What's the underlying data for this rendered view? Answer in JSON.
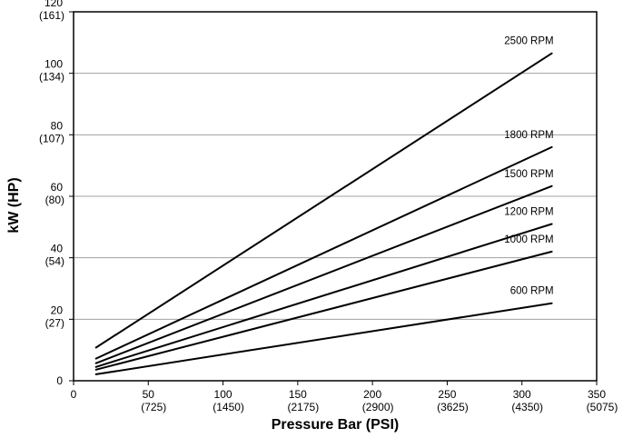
{
  "chart_data": {
    "type": "line",
    "title": "",
    "xlabel": "Pressure Bar (PSI)",
    "ylabel": "kW (HP)",
    "xlim": [
      0,
      350
    ],
    "ylim": [
      0,
      120
    ],
    "x_ticks": [
      {
        "value": 0,
        "label": "0",
        "sublabel": ""
      },
      {
        "value": 50,
        "label": "50",
        "sublabel": "(725)"
      },
      {
        "value": 100,
        "label": "100",
        "sublabel": "(1450)"
      },
      {
        "value": 150,
        "label": "150",
        "sublabel": "(2175)"
      },
      {
        "value": 200,
        "label": "200",
        "sublabel": "(2900)"
      },
      {
        "value": 250,
        "label": "250",
        "sublabel": "(3625)"
      },
      {
        "value": 300,
        "label": "300",
        "sublabel": "(4350)"
      },
      {
        "value": 350,
        "label": "350",
        "sublabel": "(5075)"
      }
    ],
    "y_ticks": [
      {
        "value": 0,
        "label": "0",
        "sublabel": ""
      },
      {
        "value": 20,
        "label": "20",
        "sublabel": "(27)"
      },
      {
        "value": 40,
        "label": "40",
        "sublabel": "(54)"
      },
      {
        "value": 60,
        "label": "60",
        "sublabel": "(80)"
      },
      {
        "value": 80,
        "label": "80",
        "sublabel": "(107)"
      },
      {
        "value": 100,
        "label": "100",
        "sublabel": "(134)"
      },
      {
        "value": 120,
        "label": "120",
        "sublabel": "(161)"
      }
    ],
    "grid": true,
    "legend": "inline labels at line ends",
    "series": [
      {
        "name": "2500 RPM",
        "x": [
          15,
          320
        ],
        "y": [
          10.8,
          106.5
        ]
      },
      {
        "name": "1800 RPM",
        "x": [
          15,
          320
        ],
        "y": [
          7.2,
          76
        ]
      },
      {
        "name": "1500 RPM",
        "x": [
          15,
          320
        ],
        "y": [
          5.7,
          63.3
        ]
      },
      {
        "name": "1200 RPM",
        "x": [
          15,
          320
        ],
        "y": [
          4.5,
          51
        ]
      },
      {
        "name": "1000 RPM",
        "x": [
          15,
          320
        ],
        "y": [
          3.6,
          42
        ]
      },
      {
        "name": "600 RPM",
        "x": [
          15,
          320
        ],
        "y": [
          2.1,
          25.2
        ]
      }
    ]
  },
  "colors": {
    "line": "#000000",
    "grid": "#a0a0a0",
    "background": "#ffffff"
  }
}
